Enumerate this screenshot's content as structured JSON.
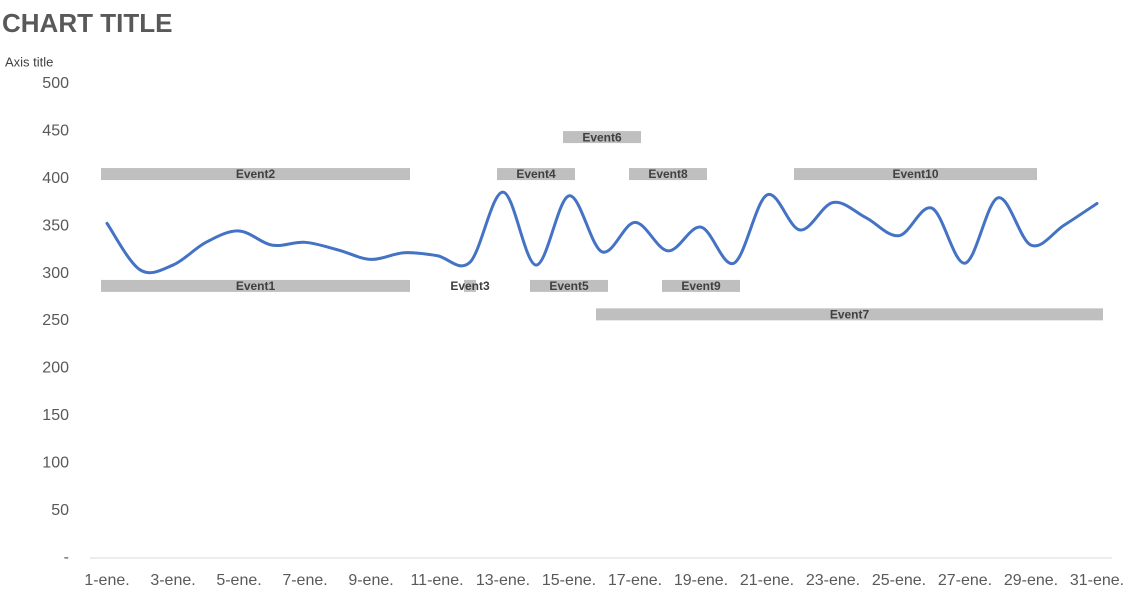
{
  "chart_data": {
    "type": "line",
    "title": "CHART TITLE",
    "y_axis_title": "Axis title",
    "categories": [
      "1-ene.",
      null,
      "3-ene.",
      null,
      "5-ene.",
      null,
      "7-ene.",
      null,
      "9-ene.",
      null,
      "11-ene.",
      null,
      "13-ene.",
      null,
      "15-ene.",
      null,
      "17-ene.",
      null,
      "19-ene.",
      null,
      "21-ene.",
      null,
      "23-ene.",
      null,
      "25-ene.",
      null,
      "27-ene.",
      null,
      "29-ene.",
      null,
      "31-ene."
    ],
    "values": [
      353,
      304,
      309,
      333,
      345,
      330,
      333,
      325,
      315,
      322,
      319,
      312,
      386,
      309,
      382,
      323,
      354,
      324,
      349,
      311,
      383,
      346,
      375,
      359,
      340,
      369,
      311,
      380,
      330,
      351,
      374
    ],
    "color": "#4472c4",
    "ylim": [
      0,
      500
    ],
    "yticks": [
      {
        "value": 0,
        "label": "-"
      },
      50,
      100,
      150,
      200,
      250,
      300,
      350,
      400,
      450,
      500
    ],
    "event_color": "#bfbfbf",
    "events": [
      {
        "name": "Event1",
        "start": 1,
        "end": 10,
        "y": 287
      },
      {
        "name": "Event2",
        "start": 1,
        "end": 10,
        "y": 405
      },
      {
        "name": "Event3",
        "start": 12,
        "end": 12,
        "y": 287
      },
      {
        "name": "Event4",
        "start": 13,
        "end": 15,
        "y": 405
      },
      {
        "name": "Event5",
        "start": 14,
        "end": 16,
        "y": 287
      },
      {
        "name": "Event6",
        "start": 15,
        "end": 17,
        "y": 444
      },
      {
        "name": "Event7",
        "start": 16,
        "end": 31,
        "y": 257
      },
      {
        "name": "Event8",
        "start": 17,
        "end": 19,
        "y": 405
      },
      {
        "name": "Event9",
        "start": 18,
        "end": 20,
        "y": 287
      },
      {
        "name": "Event10",
        "start": 22,
        "end": 29,
        "y": 405
      }
    ]
  }
}
